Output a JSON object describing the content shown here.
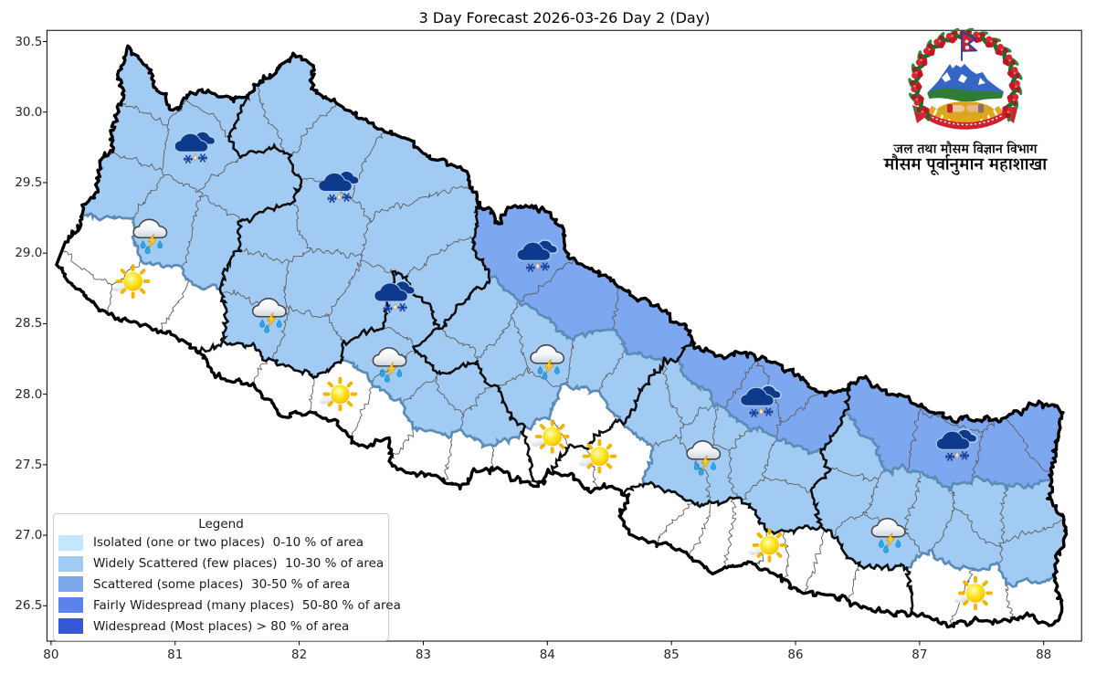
{
  "title": "3 Day Forecast 2026-03-26 Day 2 (Day)",
  "axes": {
    "xticks": [
      "80",
      "81",
      "82",
      "83",
      "84",
      "85",
      "86",
      "87",
      "88"
    ],
    "yticks": [
      "30.5",
      "30.0",
      "29.5",
      "29.0",
      "28.5",
      "28.0",
      "27.5",
      "27.0",
      "26.5"
    ]
  },
  "legend": {
    "title": "Legend",
    "entries": [
      {
        "label": "Isolated (one or two places)  0-10 % of area",
        "color": "#c3e8fb"
      },
      {
        "label": "Widely Scattered (few places)  10-30 % of area",
        "color": "#a2cbf3"
      },
      {
        "label": "Scattered (some places)  30-50 % of area",
        "color": "#7da7ef"
      },
      {
        "label": "Fairly Widespread (many places)  50-80 % of area",
        "color": "#5a84ec"
      },
      {
        "label": "Widespread (Most places) > 80 % of area",
        "color": "#3558d9"
      }
    ]
  },
  "map": {
    "region_fills": {
      "none": "#ffffff",
      "widely_scattered": "#a2cbf3",
      "scattered": "#7da7ef"
    },
    "boundary_colors": {
      "country": "#000000",
      "province": "#0d0d0d",
      "forecast_zone": "#5b8cb8",
      "district": "#5e5e5e"
    }
  },
  "icons": [
    {
      "type": "snow",
      "lon": 81.16,
      "lat": 29.74
    },
    {
      "type": "snow",
      "lon": 82.32,
      "lat": 29.46
    },
    {
      "type": "tstorm",
      "lon": 80.81,
      "lat": 29.15
    },
    {
      "type": "sun",
      "lon": 80.66,
      "lat": 28.8
    },
    {
      "type": "tstorm",
      "lon": 81.77,
      "lat": 28.59
    },
    {
      "type": "snow",
      "lon": 82.77,
      "lat": 28.68
    },
    {
      "type": "snow",
      "lon": 83.92,
      "lat": 28.97
    },
    {
      "type": "tstorm",
      "lon": 82.74,
      "lat": 28.24
    },
    {
      "type": "tstorm",
      "lon": 84.01,
      "lat": 28.26
    },
    {
      "type": "sun",
      "lon": 82.33,
      "lat": 28.0
    },
    {
      "type": "sun",
      "lon": 84.04,
      "lat": 27.7
    },
    {
      "type": "sun",
      "lon": 84.42,
      "lat": 27.56
    },
    {
      "type": "tstorm",
      "lon": 85.27,
      "lat": 27.58
    },
    {
      "type": "snow",
      "lon": 85.72,
      "lat": 27.94
    },
    {
      "type": "snow",
      "lon": 87.3,
      "lat": 27.63
    },
    {
      "type": "tstorm",
      "lon": 86.76,
      "lat": 27.03
    },
    {
      "type": "sun",
      "lon": 85.79,
      "lat": 26.93
    },
    {
      "type": "sun",
      "lon": 87.45,
      "lat": 26.59
    }
  ],
  "logo": {
    "line1": "जल तथा मौसम विज्ञान विभाग",
    "line2": "मौसम पूर्वानुमान महाशाखा"
  }
}
